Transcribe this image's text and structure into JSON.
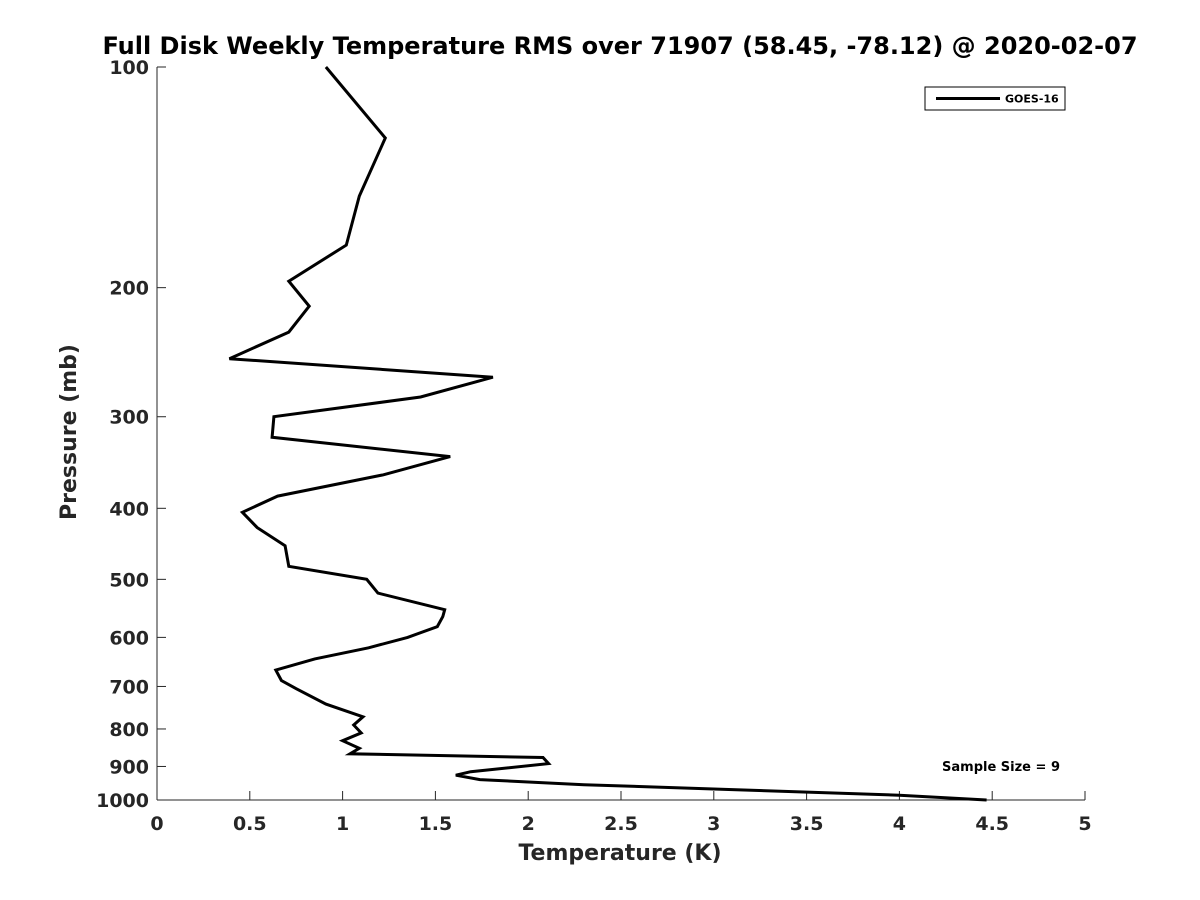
{
  "chart_data": {
    "type": "line",
    "title": "Full Disk Weekly Temperature RMS over 71907 (58.45, -78.12) @ 2020-02-07",
    "xlabel": "Temperature (K)",
    "ylabel": "Pressure (mb)",
    "xlim": [
      0,
      5
    ],
    "ylim": [
      100,
      1000
    ],
    "y_scale": "log",
    "y_reversed": true,
    "x_ticks": [
      "0",
      "0.5",
      "1",
      "1.5",
      "2",
      "2.5",
      "3",
      "3.5",
      "4",
      "4.5",
      "5"
    ],
    "y_ticks": [
      100,
      200,
      300,
      400,
      500,
      600,
      700,
      800,
      900,
      1000
    ],
    "grid": false,
    "legend_position": "top-right",
    "series": [
      {
        "name": "GOES-16",
        "color": "#000000",
        "points": [
          [
            0.91,
            100
          ],
          [
            1.23,
            125
          ],
          [
            1.09,
            150
          ],
          [
            1.02,
            175
          ],
          [
            0.71,
            196
          ],
          [
            0.82,
            212
          ],
          [
            0.71,
            230
          ],
          [
            0.39,
            250
          ],
          [
            1.81,
            265
          ],
          [
            1.42,
            282
          ],
          [
            0.63,
            300
          ],
          [
            0.62,
            320
          ],
          [
            1.58,
            340
          ],
          [
            1.22,
            360
          ],
          [
            0.65,
            385
          ],
          [
            0.46,
            405
          ],
          [
            0.54,
            425
          ],
          [
            0.69,
            450
          ],
          [
            0.71,
            480
          ],
          [
            1.13,
            500
          ],
          [
            1.19,
            522
          ],
          [
            1.55,
            550
          ],
          [
            1.54,
            562
          ],
          [
            1.51,
            580
          ],
          [
            1.35,
            600
          ],
          [
            1.14,
            620
          ],
          [
            0.85,
            642
          ],
          [
            0.64,
            665
          ],
          [
            0.67,
            687
          ],
          [
            0.75,
            705
          ],
          [
            0.91,
            740
          ],
          [
            1.11,
            770
          ],
          [
            1.06,
            790
          ],
          [
            1.1,
            810
          ],
          [
            1.0,
            830
          ],
          [
            1.09,
            850
          ],
          [
            1.04,
            865
          ],
          [
            2.08,
            875
          ],
          [
            2.11,
            892
          ],
          [
            1.69,
            915
          ],
          [
            1.61,
            925
          ],
          [
            1.74,
            938
          ],
          [
            2.3,
            953
          ],
          [
            3.1,
            968
          ],
          [
            4.0,
            985
          ],
          [
            4.47,
            1000
          ]
        ]
      }
    ],
    "annotations": [
      {
        "text": "Sample Size = 9"
      }
    ]
  }
}
